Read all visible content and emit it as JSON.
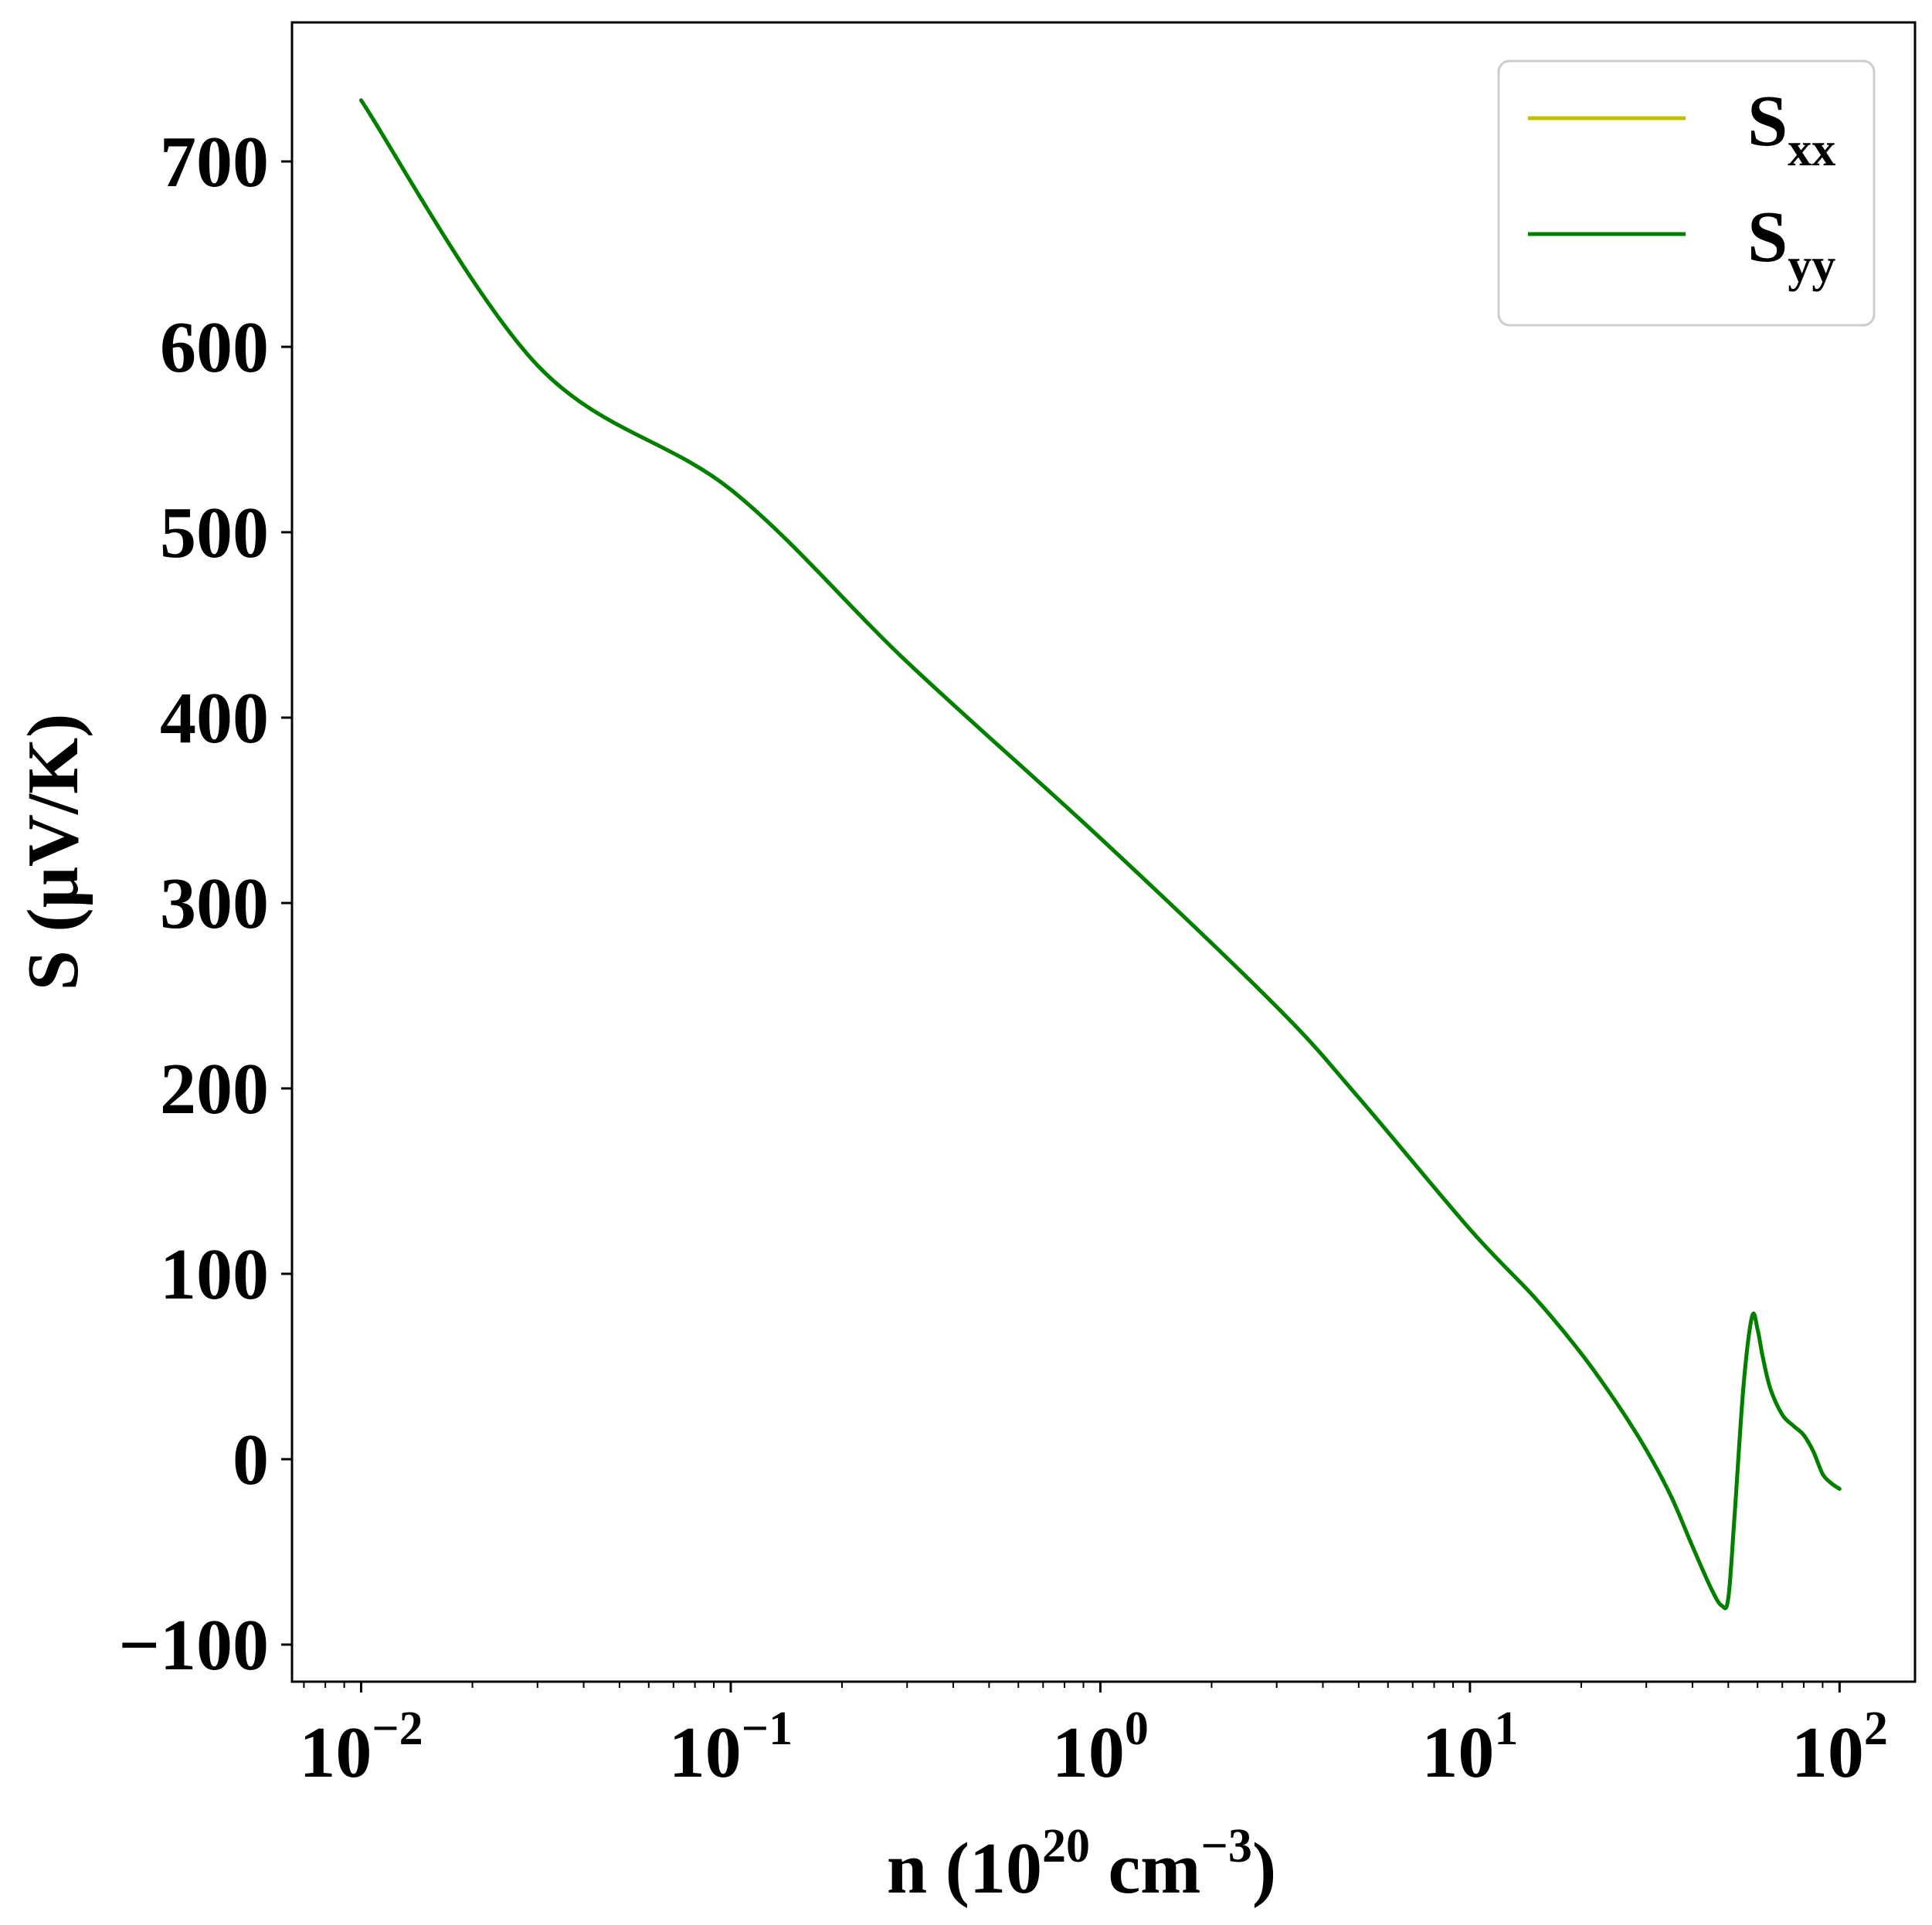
{
  "chart_data": {
    "type": "line",
    "xscale": "log",
    "xlim": [
      0.0065,
      160
    ],
    "ylim": [
      -120,
      775
    ],
    "grid": false,
    "legend_position": "upper right",
    "x_ticks": [
      {
        "value": 0.01,
        "base": "10",
        "exp": "−2"
      },
      {
        "value": 0.1,
        "base": "10",
        "exp": "−1"
      },
      {
        "value": 1,
        "base": "10",
        "exp": "0"
      },
      {
        "value": 10,
        "base": "10",
        "exp": "1"
      },
      {
        "value": 100,
        "base": "10",
        "exp": "2"
      }
    ],
    "y_ticks": [
      {
        "value": -100,
        "label": "−100"
      },
      {
        "value": 0,
        "label": "0"
      },
      {
        "value": 100,
        "label": "100"
      },
      {
        "value": 200,
        "label": "200"
      },
      {
        "value": 300,
        "label": "300"
      },
      {
        "value": 400,
        "label": "400"
      },
      {
        "value": 500,
        "label": "500"
      },
      {
        "value": 600,
        "label": "600"
      },
      {
        "value": 700,
        "label": "700"
      }
    ],
    "xlabel": {
      "prefix": "n (10",
      "sup1": "20",
      "mid": " cm",
      "sup2": "−3",
      "suffix": ")"
    },
    "ylabel": "S (μV/K)",
    "series": [
      {
        "name": "S",
        "subscript": "xx",
        "color": "#bfbf00",
        "x": [
          0.01,
          0.03,
          0.1,
          0.3,
          1,
          3,
          5,
          10,
          15,
          20,
          25,
          30,
          35,
          40,
          45,
          48,
          50,
          52,
          55,
          58,
          60,
          62,
          65,
          70,
          75,
          80,
          85,
          90,
          95,
          100
        ],
        "y": [
          733,
          590,
          523,
          430,
          335,
          244,
          195,
          124,
          87,
          57,
          30,
          5,
          -20,
          -47,
          -70,
          -79,
          -75,
          -30,
          40,
          77,
          70,
          55,
          38,
          24,
          18,
          13,
          4,
          -8,
          -13,
          -16
        ]
      },
      {
        "name": "S",
        "subscript": "yy",
        "color": "#008000",
        "x": [
          0.01,
          0.03,
          0.1,
          0.3,
          1,
          3,
          5,
          10,
          15,
          20,
          25,
          30,
          35,
          40,
          45,
          48,
          50,
          52,
          55,
          58,
          60,
          62,
          65,
          70,
          75,
          80,
          85,
          90,
          95,
          100
        ],
        "y": [
          733,
          590,
          523,
          430,
          335,
          244,
          195,
          124,
          87,
          57,
          30,
          5,
          -20,
          -47,
          -70,
          -79,
          -75,
          -30,
          40,
          77,
          70,
          55,
          38,
          24,
          18,
          13,
          4,
          -8,
          -13,
          -16
        ]
      }
    ]
  }
}
